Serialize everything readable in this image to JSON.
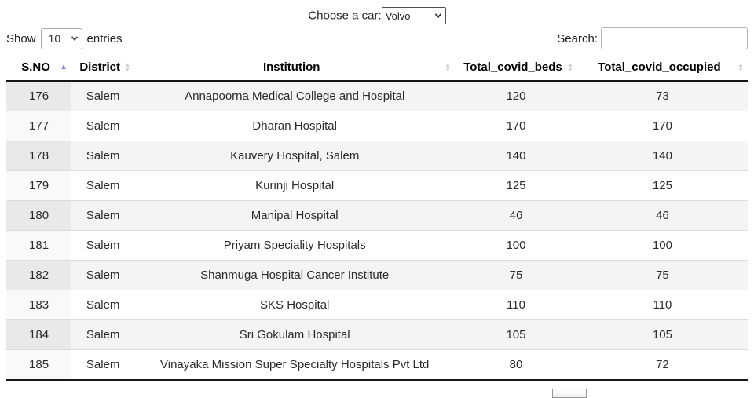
{
  "car_chooser": {
    "label": "Choose a car:",
    "selected": "Volvo"
  },
  "length_control": {
    "prefix": "Show",
    "selected": "10",
    "suffix": "entries"
  },
  "search": {
    "label": "Search:",
    "value": "",
    "placeholder": ""
  },
  "table": {
    "columns": [
      {
        "label": "S.NO",
        "sort": "asc"
      },
      {
        "label": "District",
        "sort": "none"
      },
      {
        "label": "Institution",
        "sort": "none"
      },
      {
        "label": "Total_covid_beds",
        "sort": "none"
      },
      {
        "label": "Total_covid_occupied",
        "sort": "none"
      }
    ],
    "rows": [
      {
        "sno": "176",
        "district": "Salem",
        "institution": "Annapoorna Medical College and Hospital",
        "beds": "120",
        "occupied": "73"
      },
      {
        "sno": "177",
        "district": "Salem",
        "institution": "Dharan Hospital",
        "beds": "170",
        "occupied": "170"
      },
      {
        "sno": "178",
        "district": "Salem",
        "institution": "Kauvery Hospital, Salem",
        "beds": "140",
        "occupied": "140"
      },
      {
        "sno": "179",
        "district": "Salem",
        "institution": "Kurinji Hospital",
        "beds": "125",
        "occupied": "125"
      },
      {
        "sno": "180",
        "district": "Salem",
        "institution": "Manipal Hospital",
        "beds": "46",
        "occupied": "46"
      },
      {
        "sno": "181",
        "district": "Salem",
        "institution": "Priyam Speciality Hospitals",
        "beds": "100",
        "occupied": "100"
      },
      {
        "sno": "182",
        "district": "Salem",
        "institution": "Shanmuga Hospital Cancer Institute",
        "beds": "75",
        "occupied": "75"
      },
      {
        "sno": "183",
        "district": "Salem",
        "institution": "SKS Hospital",
        "beds": "110",
        "occupied": "110"
      },
      {
        "sno": "184",
        "district": "Salem",
        "institution": "Sri Gokulam Hospital",
        "beds": "105",
        "occupied": "105"
      },
      {
        "sno": "185",
        "district": "Salem",
        "institution": "Vinayaka Mission Super Specialty Hospitals Pvt Ltd",
        "beds": "80",
        "occupied": "72"
      }
    ]
  },
  "icons": {
    "sort_ascending": "▲",
    "sort_up": "▲",
    "sort_down": "▼",
    "chevron_down": "chevron-down"
  },
  "colors": {
    "sort_active": "#8181e0",
    "sort_inactive": "#cdcdcd",
    "stripe": "#f4f4f4",
    "stripe_sorted_col": "#e9e9e9",
    "white_sorted_col": "#f9f9f9",
    "header_border": "#161616"
  }
}
